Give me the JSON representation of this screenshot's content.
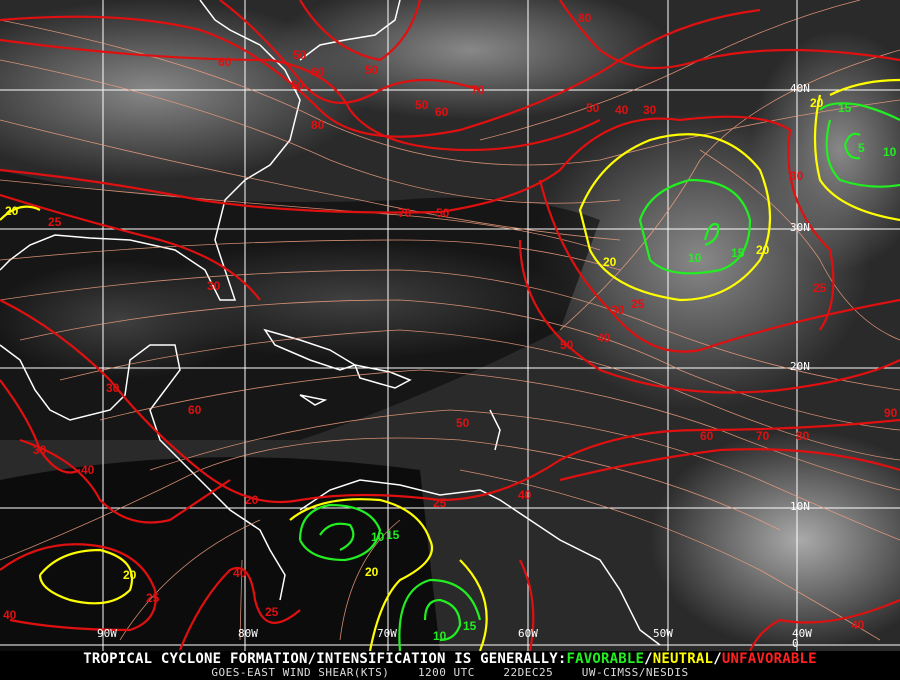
{
  "map": {
    "grid_labels": {
      "lat": [
        "40N",
        "30N",
        "20N",
        "10N",
        "0"
      ],
      "lon": [
        "90W",
        "80W",
        "70W",
        "60W",
        "50W",
        "40W"
      ]
    },
    "colors": {
      "favorable": "#22ee22",
      "neutral": "#ffff00",
      "unfavorable": "#e01010",
      "streamlines": "#f0a080",
      "coastline": "#ffffff",
      "grid": "#ffffff"
    },
    "contour_labels": {
      "red": [
        "80",
        "60",
        "50",
        "60",
        "50",
        "70",
        "60",
        "50",
        "60",
        "80",
        "50",
        "40",
        "30",
        "70",
        "50",
        "25",
        "30",
        "30",
        "30",
        "25",
        "50",
        "40",
        "25",
        "30",
        "60",
        "50",
        "30",
        "40",
        "60",
        "70",
        "80",
        "90",
        "20",
        "40",
        "25",
        "25",
        "40",
        "25",
        "40",
        "40"
      ],
      "yellow": [
        "20",
        "20",
        "20",
        "20",
        "20",
        "20"
      ],
      "green": [
        "10",
        "15",
        "15",
        "5",
        "10",
        "10",
        "15",
        "10",
        "15"
      ]
    }
  },
  "footer": {
    "headline_prefix": "TROPICAL CYCLONE FORMATION/INTENSIFICATION IS GENERALLY:",
    "favorable": "FAVORABLE",
    "sep1": "/",
    "neutral": "NEUTRAL",
    "sep2": "/",
    "unfavorable": "UNFAVORABLE",
    "product": "GOES-EAST WIND SHEAR(KTS)",
    "time": "1200 UTC",
    "date": "22DEC25",
    "credit": "UW-CIMSS/NESDIS"
  }
}
